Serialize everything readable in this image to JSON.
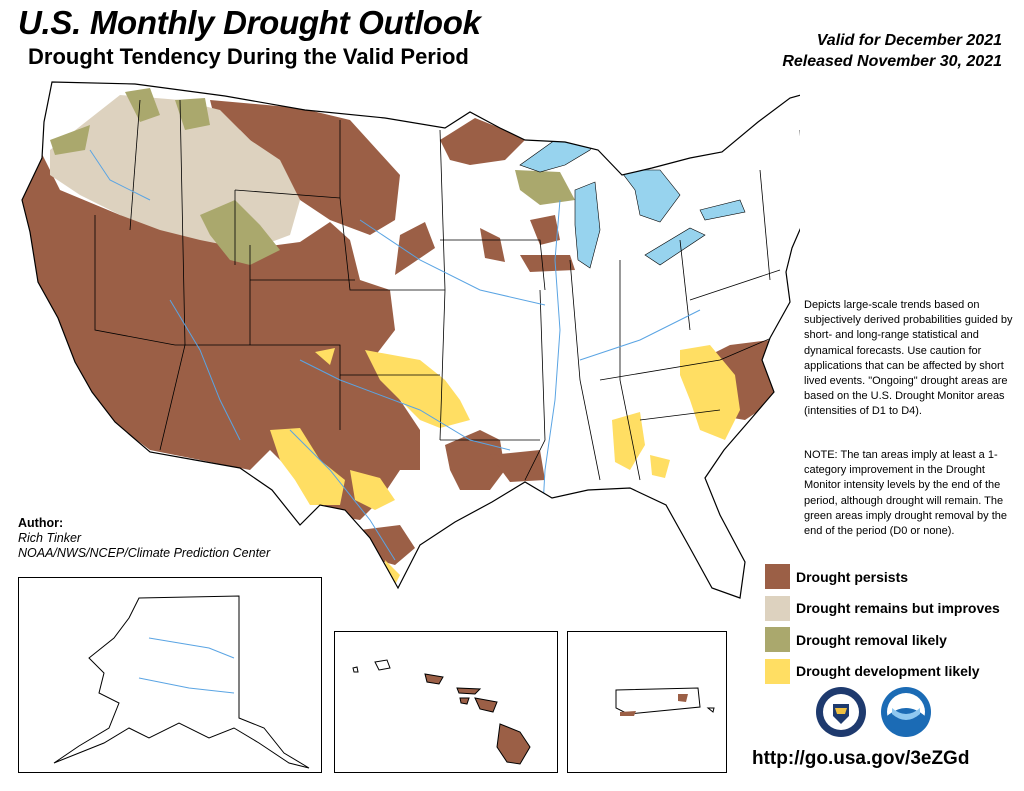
{
  "header": {
    "title": "U.S. Monthly Drought Outlook",
    "subtitle": "Drought Tendency During the Valid Period",
    "valid_line": "Valid for December 2021",
    "released_line": "Released November 30, 2021"
  },
  "description": "Depicts large-scale trends based on subjectively derived probabilities guided by short- and long-range statistical and dynamical forecasts. Use caution for applications that can be affected by short lived events. \"Ongoing\" drought areas are based on the U.S. Drought Monitor areas (intensities of D1 to D4).",
  "note": "NOTE: The tan areas imply at least a 1-category improvement in the Drought Monitor intensity levels by the end of the period, although drought will remain. The green areas imply drought removal by the end of the period (D0 or none).",
  "author": {
    "label": "Author:",
    "name": "Rich Tinker",
    "org": "NOAA/NWS/NCEP/Climate Prediction Center"
  },
  "legend": [
    {
      "label": "Drought persists",
      "color": "#9b5f46"
    },
    {
      "label": "Drought remains but improves",
      "color": "#ddd2bf"
    },
    {
      "label": "Drought removal likely",
      "color": "#aaa86d"
    },
    {
      "label": "Drought development likely",
      "color": "#ffde63"
    }
  ],
  "url": "http://go.usa.gov/3eZGd",
  "logos": {
    "left": "doc-seal-icon",
    "right": "noaa-logo-icon"
  },
  "colors": {
    "water": "#97d3ee",
    "river": "#5aa4e3",
    "border": "#000000"
  }
}
